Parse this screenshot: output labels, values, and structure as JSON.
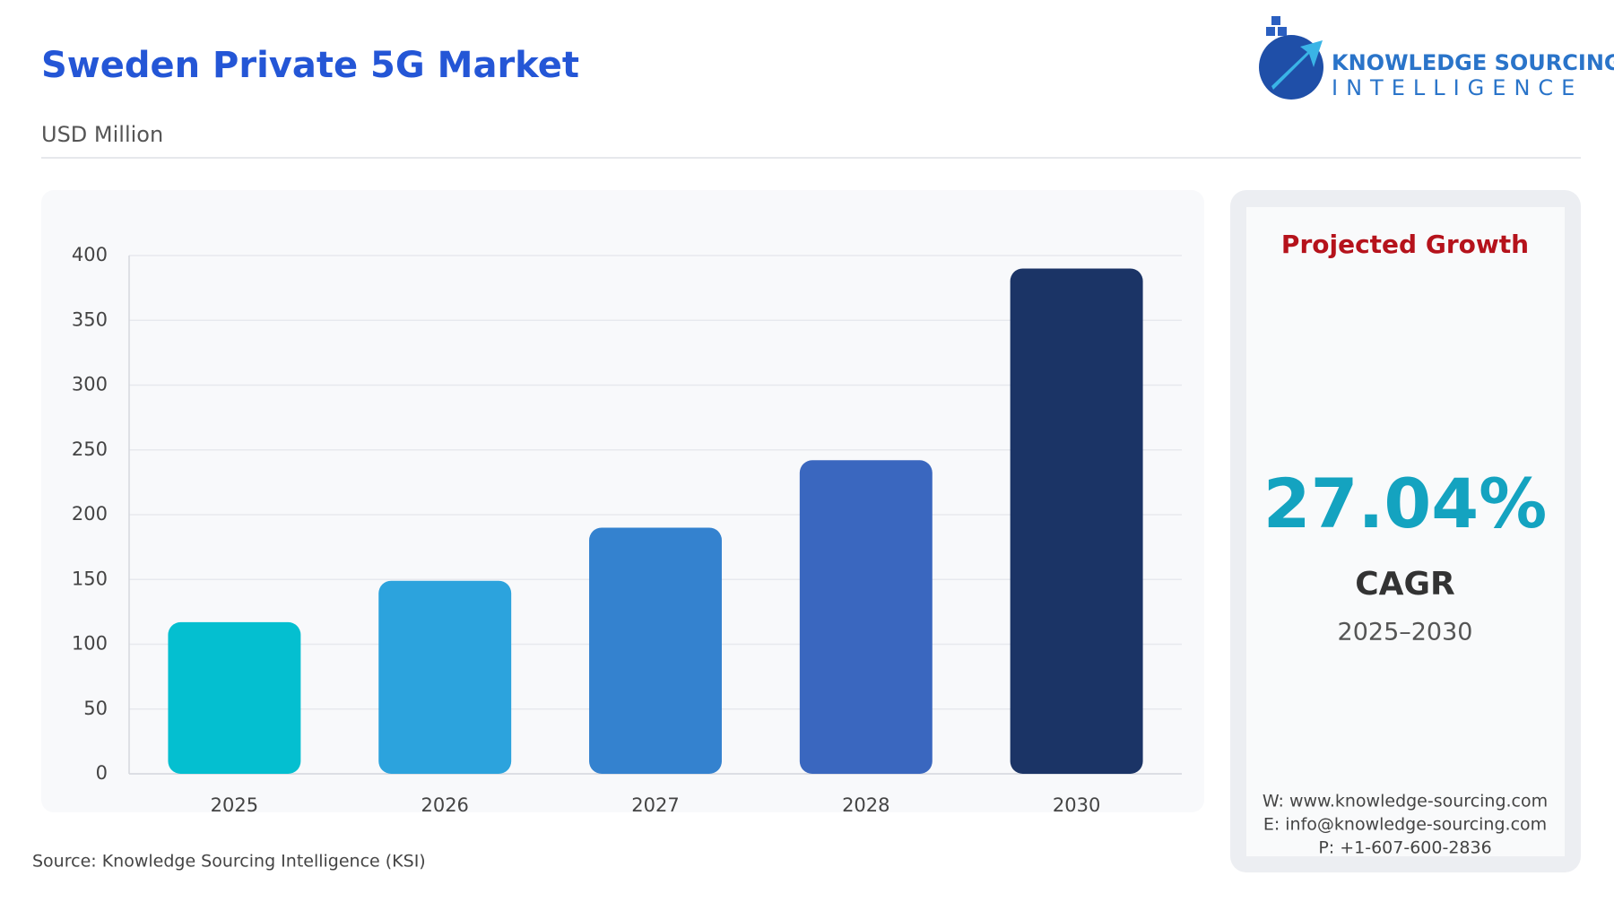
{
  "title": "Sweden Private 5G Market",
  "subtitle": "USD Million",
  "logo": {
    "line1": "KNOWLEDGE SOURCING",
    "line2": "INTELLIGENCE"
  },
  "source": "Source: Knowledge Sourcing Intelligence (KSI)",
  "chart_data": {
    "type": "bar",
    "categories": [
      "2025",
      "2026",
      "2027",
      "2028",
      "2030"
    ],
    "values": [
      117,
      149,
      190,
      242,
      390
    ],
    "colors": [
      "#04bfd0",
      "#2ca3dd",
      "#3482cf",
      "#3a67bf",
      "#1b3466"
    ],
    "ylim": [
      0,
      400
    ],
    "yticks": [
      0,
      50,
      100,
      150,
      200,
      250,
      300,
      350,
      400
    ],
    "grid": true
  },
  "growth": {
    "heading": "Projected Growth",
    "value": "27.04%",
    "metric": "CAGR",
    "period": "2025–2030"
  },
  "contact": [
    "W: www.knowledge-sourcing.com",
    "E: info@knowledge-sourcing.com",
    "P: +1-607-600-2836"
  ]
}
